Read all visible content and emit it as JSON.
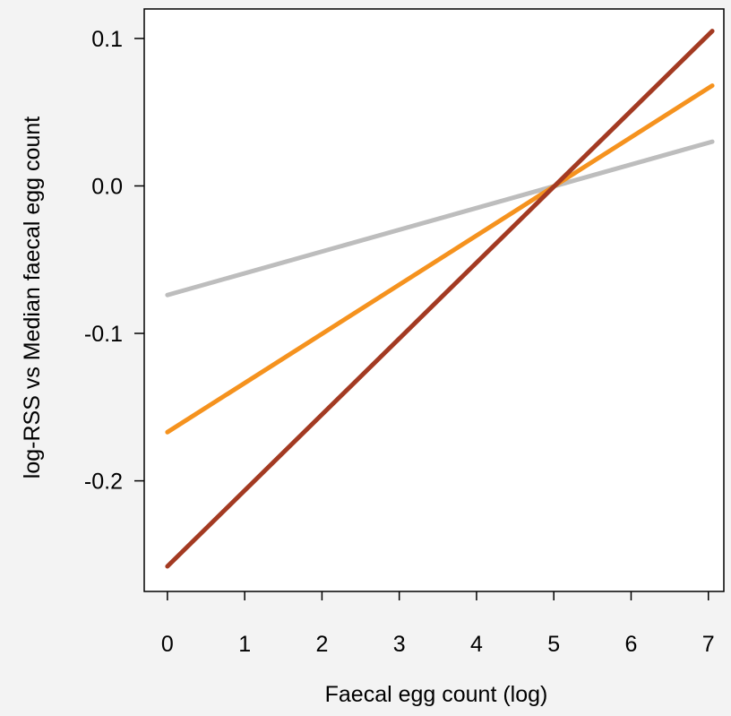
{
  "chart_data": {
    "type": "line",
    "title": "",
    "xlabel": "Faecal egg count (log)",
    "ylabel": "log-RSS vs Median faecal egg count",
    "xlim": [
      -0.3,
      7.2
    ],
    "ylim": [
      -0.275,
      0.12
    ],
    "x_ticks": [
      0,
      1,
      2,
      3,
      4,
      5,
      6,
      7
    ],
    "x_tick_labels": [
      "0",
      "1",
      "2",
      "3",
      "4",
      "5",
      "6",
      "7"
    ],
    "y_ticks": [
      -0.2,
      -0.1,
      0.0,
      0.1
    ],
    "y_tick_labels": [
      "-0.2",
      "-0.1",
      "0.0",
      "0.1"
    ],
    "grid": false,
    "series": [
      {
        "color": "#bdbdbd",
        "x": [
          0,
          7.05
        ],
        "y": [
          -0.074,
          0.03
        ]
      },
      {
        "color": "#f5921e",
        "x": [
          0,
          7.05
        ],
        "y": [
          -0.167,
          0.068
        ]
      },
      {
        "color": "#a33a22",
        "x": [
          0,
          7.05
        ],
        "y": [
          -0.258,
          0.105
        ]
      }
    ]
  }
}
